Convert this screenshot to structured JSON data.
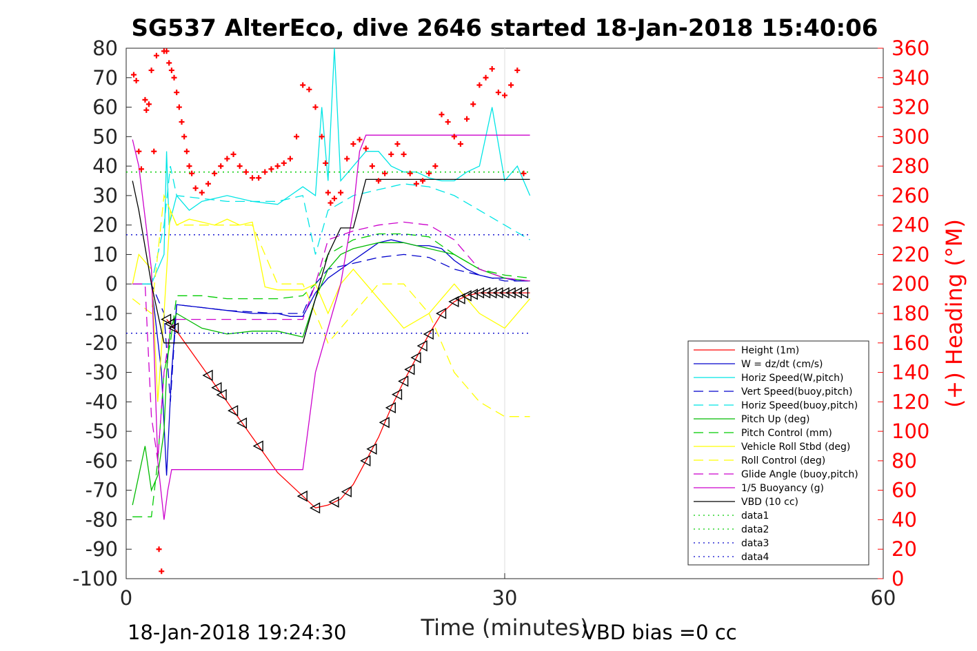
{
  "chart_data": {
    "type": "line",
    "title": "SG537 AlterEco, dive 2646 started 18-Jan-2018 15:40:06",
    "xlabel": "Time (minutes)",
    "ylabel": "",
    "y2label": "(+) Heading (°M)",
    "xlim": [
      0,
      60
    ],
    "ylim": [
      -100,
      80
    ],
    "y2lim": [
      0,
      360
    ],
    "xticks": [
      0,
      30,
      60
    ],
    "yticks": [
      80,
      70,
      60,
      50,
      40,
      30,
      20,
      10,
      0,
      -10,
      -20,
      -30,
      -40,
      -50,
      -60,
      -70,
      -80,
      -90,
      -100
    ],
    "y2ticks": [
      360,
      340,
      320,
      300,
      280,
      260,
      240,
      220,
      200,
      180,
      160,
      140,
      120,
      100,
      80,
      60,
      40,
      20,
      0
    ],
    "grid": "x only",
    "legend_position": "lower-right",
    "footer_left": "18-Jan-2018 19:24:30",
    "footer_right": "VBD bias =0 cc",
    "colors": {
      "height": "#ff0000",
      "w": "#0000cc",
      "horiz": "#00e5e5",
      "vert_buoy": "#0000cc",
      "horiz_buoy": "#00e5e5",
      "pitch": "#00bb00",
      "pitch_ctrl": "#00cc00",
      "roll": "#ffff00",
      "roll_ctrl": "#ffff00",
      "glide": "#cc00cc",
      "buoy": "#cc00cc",
      "vbd": "#000000",
      "heading": "#ff0000"
    },
    "series": [
      {
        "name": "Height (1m)",
        "style": "solid",
        "color": "#ff0000",
        "x": [
          3.2,
          4,
          6,
          8,
          10,
          12,
          14,
          15,
          16,
          17,
          18,
          19,
          20,
          21,
          22,
          23,
          24,
          25,
          26,
          27,
          28,
          29,
          30,
          31,
          32
        ],
        "y": [
          -12,
          -16,
          -28,
          -40,
          -52,
          -64,
          -72,
          -76,
          -75,
          -73,
          -68,
          -60,
          -52,
          -42,
          -33,
          -25,
          -17,
          -10,
          -6,
          -4,
          -3,
          -3,
          -3,
          -3,
          -3
        ]
      },
      {
        "name": "W = dz/dt (cm/s)",
        "style": "solid",
        "color": "#0000cc",
        "x": [
          0.5,
          2,
          2.8,
          3.2,
          3.6,
          4,
          6,
          8,
          10,
          12,
          13,
          14,
          15,
          16,
          17,
          18,
          19,
          20,
          21,
          22,
          23,
          24,
          25,
          26,
          27,
          28,
          29,
          30,
          31,
          32
        ],
        "y": [
          0,
          0,
          -30,
          -65,
          -30,
          -7,
          -8,
          -9,
          -10,
          -10,
          -11,
          -11,
          -3,
          2,
          5,
          8,
          11,
          14,
          15,
          14,
          13,
          13,
          12,
          8,
          5,
          3,
          2,
          2,
          1,
          1
        ]
      },
      {
        "name": "Horiz Speed(W,pitch)",
        "style": "solid",
        "color": "#00e5e5",
        "x": [
          0.5,
          2,
          3,
          3.2,
          3.4,
          4,
          5,
          6,
          8,
          10,
          12,
          13,
          14,
          15,
          15.5,
          16,
          16.5,
          17,
          18,
          19,
          20,
          21,
          22,
          23,
          24,
          25,
          26,
          27,
          28,
          29,
          30,
          31,
          32
        ],
        "y": [
          0,
          0,
          10,
          45,
          20,
          30,
          25,
          28,
          30,
          28,
          27,
          30,
          33,
          30,
          60,
          35,
          80,
          35,
          40,
          45,
          45,
          40,
          38,
          38,
          36,
          35,
          35,
          38,
          40,
          60,
          35,
          40,
          30
        ]
      },
      {
        "name": "Vert Speed(buoy,pitch)",
        "style": "dash",
        "color": "#0000cc",
        "x": [
          0.5,
          2,
          3,
          3.5,
          4,
          8,
          12,
          14,
          15,
          16,
          18,
          20,
          22,
          24,
          26,
          28,
          30,
          32
        ],
        "y": [
          0,
          0,
          -10,
          -40,
          -7,
          -9,
          -10,
          -10,
          0,
          5,
          7,
          9,
          10,
          9,
          5,
          3,
          1,
          1
        ]
      },
      {
        "name": "Horiz Speed(buoy,pitch)",
        "style": "dash",
        "color": "#00e5e5",
        "x": [
          0.5,
          2,
          3,
          3.5,
          4,
          8,
          12,
          14,
          15,
          16,
          18,
          20,
          22,
          24,
          26,
          28,
          30,
          32
        ],
        "y": [
          0,
          0,
          20,
          40,
          30,
          28,
          28,
          30,
          10,
          25,
          30,
          32,
          34,
          33,
          30,
          25,
          20,
          15
        ]
      },
      {
        "name": "Pitch Up (deg)",
        "style": "solid",
        "color": "#00bb00",
        "x": [
          0.5,
          1,
          1.5,
          2,
          2.5,
          3,
          3.2,
          3.5,
          4,
          6,
          8,
          10,
          12,
          14,
          15,
          16,
          17,
          18,
          20,
          22,
          24,
          26,
          28,
          30,
          32
        ],
        "y": [
          -75,
          -65,
          -55,
          -70,
          -65,
          -50,
          -30,
          -15,
          -10,
          -15,
          -17,
          -16,
          -16,
          -18,
          -5,
          5,
          10,
          12,
          14,
          14,
          12,
          10,
          5,
          2,
          1
        ]
      },
      {
        "name": "Pitch Control (mm)",
        "style": "dash",
        "color": "#00cc00",
        "x": [
          0.5,
          2,
          2.5,
          3,
          3.5,
          4,
          6,
          8,
          10,
          12,
          14,
          15,
          16,
          18,
          20,
          22,
          24,
          26,
          28,
          30,
          32
        ],
        "y": [
          -79,
          -79,
          -60,
          -30,
          -20,
          -4,
          -4,
          -5,
          -5,
          -5,
          -4,
          0,
          10,
          15,
          17,
          17,
          16,
          10,
          5,
          3,
          2
        ]
      },
      {
        "name": "Vehicle Roll Stbd (deg)",
        "style": "solid",
        "color": "#ffff00",
        "x": [
          0.5,
          1,
          2,
          2.5,
          3,
          3.5,
          4,
          5,
          6,
          7,
          8,
          9,
          10,
          11,
          12,
          14,
          15,
          16,
          17,
          18,
          20,
          22,
          24,
          26,
          28,
          30,
          32
        ],
        "y": [
          0,
          10,
          5,
          -40,
          -10,
          25,
          20,
          22,
          21,
          20,
          22,
          20,
          21,
          -1,
          -2,
          -2,
          0,
          -10,
          0,
          5,
          -5,
          -15,
          -10,
          0,
          -10,
          -15,
          -5
        ]
      },
      {
        "name": "Roll Control (deg)",
        "style": "dash",
        "color": "#ffff00",
        "x": [
          0.5,
          2,
          3,
          4,
          6,
          8,
          10,
          12,
          14,
          16,
          18,
          20,
          22,
          24,
          26,
          28,
          30,
          32
        ],
        "y": [
          -5,
          -10,
          30,
          20,
          20,
          20,
          20,
          0,
          0,
          -20,
          -10,
          0,
          0,
          -10,
          -30,
          -40,
          -45,
          -45
        ]
      },
      {
        "name": "Glide Angle (buoy,pitch)",
        "style": "dash",
        "color": "#cc00cc",
        "x": [
          0.5,
          1.5,
          2,
          2.5,
          3,
          3.5,
          4,
          8,
          12,
          14,
          15,
          16,
          18,
          20,
          22,
          24,
          26,
          28,
          30,
          32
        ],
        "y": [
          0,
          0,
          -45,
          -60,
          -30,
          -15,
          -12,
          -12,
          -12,
          -12,
          0,
          15,
          18,
          20,
          21,
          20,
          15,
          5,
          2,
          1
        ]
      },
      {
        "name": "1/5 Buoyancy (g)",
        "style": "solid",
        "color": "#cc00cc",
        "x": [
          0.5,
          1,
          2,
          2.5,
          3,
          3.3,
          3.6,
          4,
          14,
          15,
          16,
          17,
          18,
          18.5,
          19,
          32
        ],
        "y": [
          49,
          40,
          5,
          -60,
          -80,
          -70,
          -63,
          -63,
          -63,
          -30,
          -15,
          0,
          25,
          45,
          50.5,
          50.5
        ]
      },
      {
        "name": "VBD (10 cc)",
        "style": "solid",
        "color": "#000000",
        "x": [
          0.5,
          1,
          2,
          2.5,
          3,
          3.5,
          14,
          15,
          16,
          17,
          18,
          19,
          32
        ],
        "y": [
          35,
          25,
          0,
          -10,
          -20,
          -20,
          -20,
          -5,
          10,
          19,
          19,
          35.5,
          35.5
        ]
      },
      {
        "name": "data1",
        "style": "dot",
        "color": "#00cc00",
        "x": [
          0,
          32
        ],
        "y": [
          38,
          38
        ]
      },
      {
        "name": "data2",
        "style": "dot",
        "color": "#00cc00",
        "x": [
          0,
          32
        ],
        "y": [
          38,
          38
        ]
      },
      {
        "name": "data3",
        "style": "dot",
        "color": "#0000cc",
        "x": [
          0,
          32
        ],
        "y": [
          16.7,
          16.7
        ]
      },
      {
        "name": "data4",
        "style": "dot",
        "color": "#0000cc",
        "x": [
          0,
          32
        ],
        "y": [
          -16.7,
          -16.7
        ]
      }
    ],
    "heading_marks": {
      "marker": "+",
      "color": "#ff0000",
      "x": [
        0.6,
        0.8,
        1.0,
        1.2,
        1.5,
        1.6,
        1.8,
        2.0,
        2.2,
        2.4,
        2.6,
        2.8,
        3.0,
        3.2,
        3.4,
        3.6,
        3.8,
        4.0,
        4.2,
        4.4,
        4.6,
        4.8,
        5.0,
        5.2,
        5.5,
        6.0,
        6.5,
        7.0,
        7.5,
        8.0,
        8.5,
        9.0,
        9.5,
        10.0,
        10.5,
        11.0,
        11.5,
        12.0,
        12.5,
        13.0,
        13.5,
        14.0,
        14.5,
        15.0,
        15.5,
        15.8,
        16.0,
        16.2,
        16.5,
        17.0,
        17.5,
        18.0,
        18.5,
        19.0,
        19.5,
        20.0,
        20.5,
        21.0,
        21.5,
        22.0,
        22.5,
        23.0,
        23.5,
        24.0,
        24.5,
        25.0,
        25.5,
        26.0,
        26.5,
        27.0,
        27.5,
        28.0,
        28.5,
        29.0,
        29.5,
        30.0,
        30.5,
        31.0,
        31.5
      ],
      "y": [
        342,
        338,
        290,
        278,
        325,
        318,
        322,
        345,
        290,
        355,
        20,
        5,
        358,
        358,
        350,
        345,
        340,
        330,
        320,
        310,
        300,
        290,
        280,
        275,
        265,
        262,
        268,
        275,
        280,
        285,
        288,
        280,
        276,
        272,
        272,
        276,
        278,
        280,
        282,
        285,
        300,
        335,
        332,
        320,
        300,
        282,
        262,
        255,
        258,
        262,
        285,
        295,
        298,
        292,
        280,
        270,
        275,
        288,
        295,
        288,
        275,
        268,
        270,
        275,
        280,
        315,
        310,
        300,
        295,
        312,
        322,
        335,
        340,
        346,
        330,
        328,
        335,
        345,
        275
      ]
    },
    "triangle_marks_x": [
      3.2,
      3.5,
      3.8,
      6.5,
      7.2,
      7.6,
      8.5,
      9.2,
      10.5,
      14,
      15,
      16.5,
      17.5,
      19,
      19.5,
      20.5,
      21,
      21.5,
      22,
      22.5,
      23,
      23.5,
      24,
      25,
      26,
      26.5,
      27,
      27.5,
      28,
      28.5,
      29,
      29.5,
      30,
      30.5,
      31,
      31.5
    ]
  }
}
